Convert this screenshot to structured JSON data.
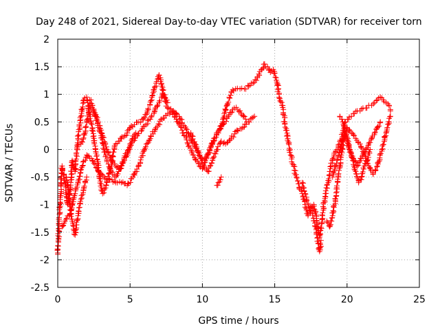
{
  "chart_data": {
    "type": "scatter",
    "title": "Day 248 of 2021, Sidereal Day-to-day VTEC variation (SDTVAR) for receiver torn",
    "xlabel": "GPS time / hours",
    "ylabel": "SDTVAR / TECUs",
    "xlim": [
      0,
      25
    ],
    "ylim": [
      -2.5,
      2
    ],
    "xticks": [
      0,
      5,
      10,
      15,
      20,
      25
    ],
    "xtick_labels": [
      "0",
      "5",
      "10",
      "15",
      "20",
      "25"
    ],
    "yticks": [
      2,
      1.5,
      1,
      0.5,
      0,
      -0.5,
      -1,
      -1.5,
      -2,
      -2.5
    ],
    "ytick_labels": [
      "2",
      "1.5",
      "1",
      "0.5",
      "0",
      "-0.5",
      "-1",
      "-1.5",
      "-2",
      "-2.5"
    ],
    "grid": true,
    "marker": "+",
    "color": "#ff0000",
    "series": [
      {
        "name": "SDTVAR",
        "segments": [
          {
            "x": [
              0,
              0.1,
              0.2,
              0.3,
              0.5,
              0.7,
              0.9,
              1.0,
              1.2,
              1.4,
              1.6,
              1.8,
              2.0,
              2.1,
              2.3,
              2.5,
              2.7,
              2.9,
              3.1,
              3.4,
              3.7,
              4.0,
              4.4,
              4.8,
              5.0,
              5.3,
              5.6,
              5.9,
              6.2,
              6.5,
              6.8,
              7.0,
              7.1,
              7.3,
              7.6,
              7.9,
              8.2,
              8.6,
              9.0,
              9.4,
              9.8,
              10.0,
              10.2,
              10.5,
              10.8,
              11.1,
              11.4,
              11.7,
              12.0,
              12.3,
              12.6,
              12.9,
              13.2,
              13.5,
              13.8,
              14.1,
              14.3,
              14.5,
              14.7,
              14.9,
              15.1,
              15.3,
              15.5,
              15.7,
              15.9,
              16.1,
              16.3,
              16.5,
              16.7,
              16.9,
              17.1,
              17.3,
              17.5,
              17.7,
              17.9,
              18.1,
              18.3,
              18.5,
              18.7,
              18.9,
              19.1,
              19.3,
              19.5,
              19.7,
              19.9,
              20.1,
              20.3,
              20.5,
              20.7,
              20.9,
              21.1,
              21.3,
              21.5,
              21.7,
              21.9,
              22.1,
              22.3,
              22.5,
              22.7,
              22.9,
              23.0
            ],
            "y": [
              -1.9,
              -1.3,
              -0.8,
              -0.3,
              -0.6,
              -1.0,
              -0.6,
              -0.2,
              -0.4,
              0.2,
              0.6,
              0.9,
              0.95,
              0.8,
              0.5,
              0.2,
              -0.1,
              -0.5,
              -0.8,
              -0.6,
              -0.3,
              0.1,
              0.2,
              0.3,
              0.4,
              0.45,
              0.5,
              0.55,
              0.7,
              0.9,
              1.2,
              1.35,
              1.3,
              1.0,
              0.75,
              0.7,
              0.55,
              0.35,
              0.1,
              -0.1,
              -0.3,
              -0.35,
              -0.2,
              0.0,
              0.2,
              0.3,
              0.5,
              0.8,
              1.05,
              1.1,
              1.1,
              1.1,
              1.15,
              1.2,
              1.3,
              1.45,
              1.55,
              1.5,
              1.4,
              1.45,
              1.3,
              1.0,
              0.8,
              0.5,
              0.2,
              -0.1,
              -0.3,
              -0.5,
              -0.7,
              -0.8,
              -1.0,
              -1.2,
              -1.1,
              -1.0,
              -1.3,
              -1.6,
              -1.2,
              -0.8,
              -0.6,
              -0.3,
              -0.1,
              0.0,
              0.1,
              0.3,
              0.5,
              0.55,
              0.6,
              0.65,
              0.7,
              0.7,
              0.75,
              0.75,
              0.8,
              0.8,
              0.85,
              0.9,
              0.95,
              0.9,
              0.85,
              0.8,
              0.7
            ]
          },
          {
            "x": [
              0.3,
              0.5,
              0.8,
              1.1,
              1.4,
              1.7,
              2.0,
              2.4,
              2.8,
              3.2,
              3.6,
              4.0,
              4.4,
              4.8,
              5.2,
              5.6,
              6.0,
              6.4,
              6.8,
              7.2,
              7.6,
              8.0,
              8.5,
              9.0,
              9.5,
              10.0,
              10.3,
              10.6,
              11.0,
              11.4,
              11.8,
              12.2,
              12.6,
              13.0
            ],
            "y": [
              -1.4,
              -1.3,
              -1.2,
              -0.9,
              -0.6,
              -0.3,
              -0.1,
              -0.2,
              -0.4,
              -0.5,
              -0.55,
              -0.6,
              -0.6,
              -0.65,
              -0.5,
              -0.3,
              0.0,
              0.2,
              0.4,
              0.55,
              0.65,
              0.7,
              0.55,
              0.3,
              0.05,
              -0.2,
              -0.15,
              0.05,
              0.3,
              0.45,
              0.6,
              0.75,
              0.7,
              0.55
            ]
          },
          {
            "x": [
              1.6,
              1.9,
              2.2,
              2.5,
              2.8,
              3.1,
              3.4,
              3.7,
              4.0,
              4.3,
              4.6,
              4.9,
              5.2,
              5.5,
              5.8,
              6.1,
              6.4,
              6.7,
              7.0,
              7.3,
              7.6
            ],
            "y": [
              0.1,
              0.3,
              0.8,
              0.7,
              0.5,
              0.25,
              0.0,
              -0.2,
              -0.3,
              -0.35,
              -0.2,
              0.0,
              0.15,
              0.25,
              0.35,
              0.45,
              0.55,
              0.7,
              0.85,
              1.0,
              0.85
            ]
          },
          {
            "x": [
              2.2,
              2.4,
              2.6,
              2.8,
              3.0,
              3.2,
              3.4,
              3.6,
              3.8,
              4.0,
              4.2,
              4.4,
              4.6,
              4.8,
              5.0,
              5.2,
              5.4
            ],
            "y": [
              0.9,
              0.8,
              0.6,
              0.4,
              0.25,
              0.0,
              -0.2,
              -0.35,
              -0.45,
              -0.5,
              -0.4,
              -0.3,
              -0.15,
              -0.05,
              0.1,
              0.2,
              0.3
            ]
          },
          {
            "x": [
              0.6,
              0.8,
              1.0,
              1.2,
              1.4,
              1.6,
              1.8,
              2.0
            ],
            "y": [
              -0.5,
              -0.9,
              -1.3,
              -1.55,
              -1.2,
              -0.9,
              -0.7,
              -0.5
            ]
          },
          {
            "x": [
              9.2,
              9.5,
              9.8,
              10.1,
              10.4,
              10.7,
              11.0,
              11.3,
              11.6,
              12.0,
              12.4,
              12.8,
              13.2,
              13.6
            ],
            "y": [
              0.3,
              0.1,
              -0.1,
              -0.3,
              -0.4,
              -0.2,
              0.0,
              0.15,
              0.1,
              0.2,
              0.35,
              0.4,
              0.5,
              0.6
            ]
          },
          {
            "x": [
              11.0,
              11.1,
              11.2,
              11.3
            ],
            "y": [
              -0.65,
              -0.6,
              -0.55,
              -0.5
            ]
          },
          {
            "x": [
              16.9,
              17.1,
              17.3,
              17.5,
              17.7,
              17.9,
              18.0,
              18.1,
              18.2
            ],
            "y": [
              -0.6,
              -0.8,
              -1.0,
              -1.1,
              -1.25,
              -1.5,
              -1.7,
              -1.85,
              -1.65
            ]
          },
          {
            "x": [
              18.6,
              18.8,
              19.0,
              19.2,
              19.4,
              19.6,
              19.8,
              20.0,
              20.3,
              20.6,
              20.9,
              21.2,
              21.5,
              21.8,
              22.1,
              22.4,
              22.7,
              23.0
            ],
            "y": [
              -1.3,
              -1.4,
              -1.2,
              -0.9,
              -0.5,
              -0.1,
              0.2,
              0.4,
              0.3,
              0.2,
              0.1,
              -0.1,
              -0.3,
              -0.45,
              -0.3,
              0.0,
              0.3,
              0.6
            ]
          },
          {
            "x": [
              19.5,
              19.7,
              19.9,
              20.1,
              20.3,
              20.5,
              20.7,
              20.9,
              21.1,
              21.3,
              21.5,
              21.7,
              21.9,
              22.1,
              22.3
            ],
            "y": [
              0.6,
              0.5,
              0.3,
              0.1,
              -0.1,
              -0.2,
              -0.3,
              -0.2,
              -0.1,
              0.0,
              0.1,
              0.2,
              0.3,
              0.4,
              0.5
            ]
          },
          {
            "x": [
              19.0,
              19.2,
              19.4,
              19.6,
              19.8,
              20.0,
              20.2,
              20.4,
              20.6,
              20.8,
              21.0,
              21.2,
              21.4,
              21.6
            ],
            "y": [
              -0.5,
              -0.3,
              -0.1,
              0.1,
              0.3,
              0.2,
              0.0,
              -0.2,
              -0.4,
              -0.6,
              -0.5,
              -0.3,
              -0.2,
              0.0
            ]
          }
        ]
      }
    ]
  }
}
